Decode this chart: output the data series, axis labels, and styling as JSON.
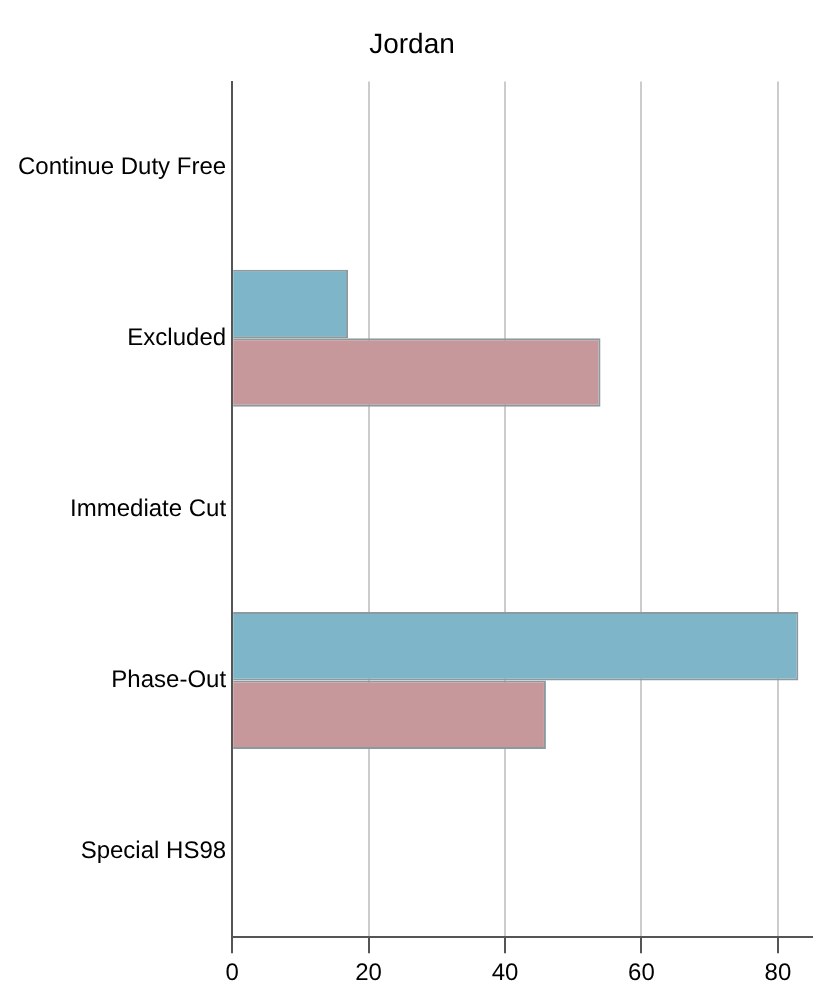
{
  "chart_data": {
    "type": "bar",
    "orientation": "horizontal",
    "title": "Jordan",
    "categories": [
      "Continue Duty Free",
      "Excluded",
      "Immediate Cut",
      "Phase-Out",
      "Special HS98"
    ],
    "series": [
      {
        "color": "#7fb5c8",
        "values": [
          0,
          17,
          0,
          83,
          0
        ]
      },
      {
        "color": "#c6989b",
        "values": [
          0,
          54,
          0,
          46,
          0
        ]
      }
    ],
    "xlim": [
      0,
      85
    ],
    "xticks": [
      0,
      20,
      40,
      60,
      80
    ],
    "grid": "x",
    "legend": false
  }
}
